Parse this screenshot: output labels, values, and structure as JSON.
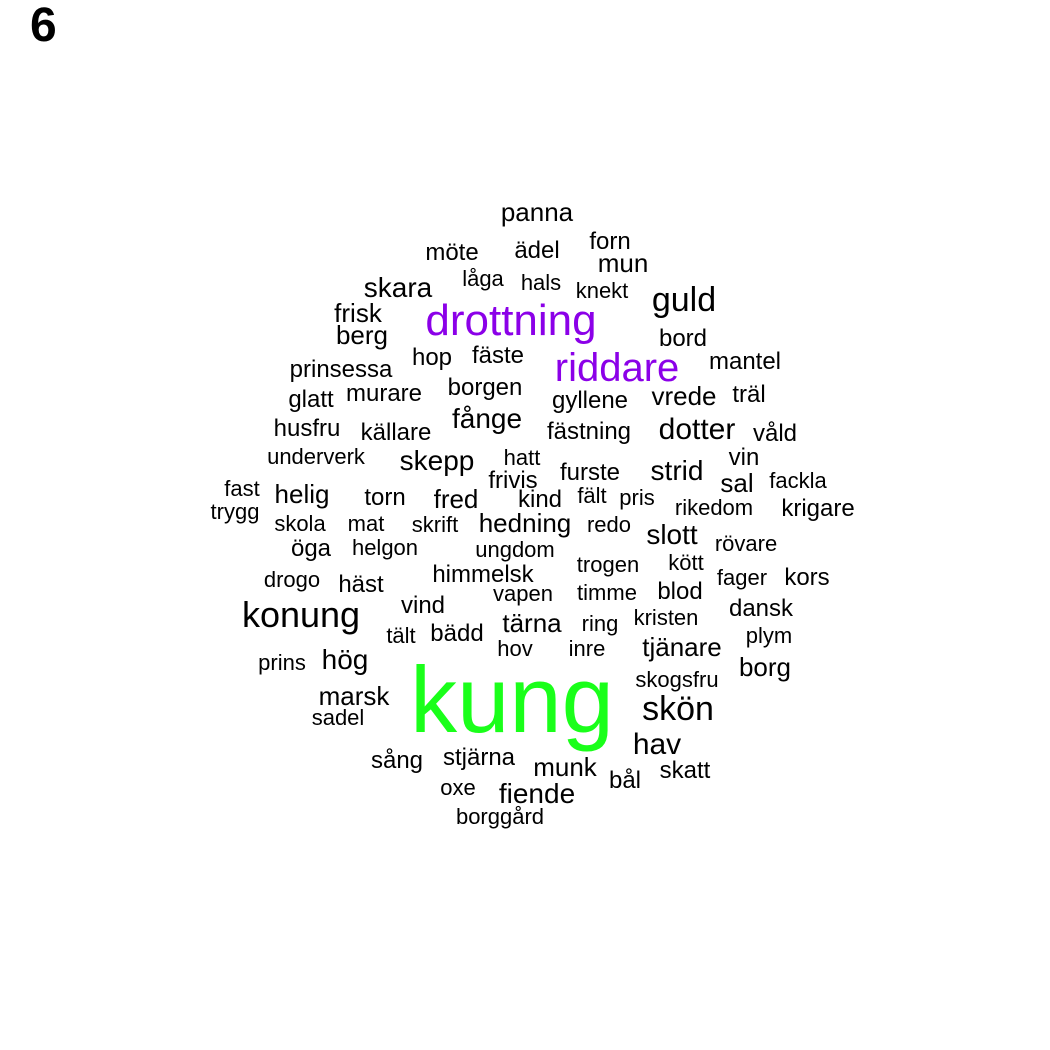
{
  "panel_label": "6",
  "colors": {
    "normal": "#000000",
    "highlight_purple": "#8b00e8",
    "highlight_green": "#1aff1a"
  },
  "words": [
    {
      "text": "kung",
      "color": "highlight_green"
    },
    {
      "text": "drottning",
      "color": "highlight_purple"
    },
    {
      "text": "riddare",
      "color": "highlight_purple"
    },
    {
      "text": "konung",
      "color": "normal"
    },
    {
      "text": "guld",
      "color": "normal"
    },
    {
      "text": "skön",
      "color": "normal"
    },
    {
      "text": "hav",
      "color": "normal"
    },
    {
      "text": "dotter",
      "color": "normal"
    },
    {
      "text": "panna",
      "color": "normal"
    },
    {
      "text": "möte",
      "color": "normal"
    },
    {
      "text": "ädel",
      "color": "normal"
    },
    {
      "text": "forn",
      "color": "normal"
    },
    {
      "text": "mun",
      "color": "normal"
    },
    {
      "text": "låga",
      "color": "normal"
    },
    {
      "text": "hals",
      "color": "normal"
    },
    {
      "text": "knekt",
      "color": "normal"
    },
    {
      "text": "skara",
      "color": "normal"
    },
    {
      "text": "frisk",
      "color": "normal"
    },
    {
      "text": "berg",
      "color": "normal"
    },
    {
      "text": "bord",
      "color": "normal"
    },
    {
      "text": "hop",
      "color": "normal"
    },
    {
      "text": "fäste",
      "color": "normal"
    },
    {
      "text": "mantel",
      "color": "normal"
    },
    {
      "text": "prinsessa",
      "color": "normal"
    },
    {
      "text": "borgen",
      "color": "normal"
    },
    {
      "text": "glatt",
      "color": "normal"
    },
    {
      "text": "murare",
      "color": "normal"
    },
    {
      "text": "gyllene",
      "color": "normal"
    },
    {
      "text": "vrede",
      "color": "normal"
    },
    {
      "text": "träl",
      "color": "normal"
    },
    {
      "text": "fånge",
      "color": "normal"
    },
    {
      "text": "husfru",
      "color": "normal"
    },
    {
      "text": "källare",
      "color": "normal"
    },
    {
      "text": "fästning",
      "color": "normal"
    },
    {
      "text": "våld",
      "color": "normal"
    },
    {
      "text": "underverk",
      "color": "normal"
    },
    {
      "text": "skepp",
      "color": "normal"
    },
    {
      "text": "hatt",
      "color": "normal"
    },
    {
      "text": "vin",
      "color": "normal"
    },
    {
      "text": "strid",
      "color": "normal"
    },
    {
      "text": "furste",
      "color": "normal"
    },
    {
      "text": "fackla",
      "color": "normal"
    },
    {
      "text": "sal",
      "color": "normal"
    },
    {
      "text": "frivis",
      "color": "normal"
    },
    {
      "text": "fast",
      "color": "normal"
    },
    {
      "text": "helig",
      "color": "normal"
    },
    {
      "text": "torn",
      "color": "normal"
    },
    {
      "text": "fred",
      "color": "normal"
    },
    {
      "text": "kind",
      "color": "normal"
    },
    {
      "text": "fält",
      "color": "normal"
    },
    {
      "text": "pris",
      "color": "normal"
    },
    {
      "text": "rikedom",
      "color": "normal"
    },
    {
      "text": "krigare",
      "color": "normal"
    },
    {
      "text": "trygg",
      "color": "normal"
    },
    {
      "text": "skola",
      "color": "normal"
    },
    {
      "text": "mat",
      "color": "normal"
    },
    {
      "text": "skrift",
      "color": "normal"
    },
    {
      "text": "hedning",
      "color": "normal"
    },
    {
      "text": "redo",
      "color": "normal"
    },
    {
      "text": "slott",
      "color": "normal"
    },
    {
      "text": "öga",
      "color": "normal"
    },
    {
      "text": "helgon",
      "color": "normal"
    },
    {
      "text": "ungdom",
      "color": "normal"
    },
    {
      "text": "rövare",
      "color": "normal"
    },
    {
      "text": "trogen",
      "color": "normal"
    },
    {
      "text": "kött",
      "color": "normal"
    },
    {
      "text": "drogo",
      "color": "normal"
    },
    {
      "text": "häst",
      "color": "normal"
    },
    {
      "text": "himmelsk",
      "color": "normal"
    },
    {
      "text": "fager",
      "color": "normal"
    },
    {
      "text": "kors",
      "color": "normal"
    },
    {
      "text": "vapen",
      "color": "normal"
    },
    {
      "text": "timme",
      "color": "normal"
    },
    {
      "text": "blod",
      "color": "normal"
    },
    {
      "text": "vind",
      "color": "normal"
    },
    {
      "text": "dansk",
      "color": "normal"
    },
    {
      "text": "tärna",
      "color": "normal"
    },
    {
      "text": "ring",
      "color": "normal"
    },
    {
      "text": "kristen",
      "color": "normal"
    },
    {
      "text": "tält",
      "color": "normal"
    },
    {
      "text": "bädd",
      "color": "normal"
    },
    {
      "text": "plym",
      "color": "normal"
    },
    {
      "text": "tjänare",
      "color": "normal"
    },
    {
      "text": "hov",
      "color": "normal"
    },
    {
      "text": "inre",
      "color": "normal"
    },
    {
      "text": "prins",
      "color": "normal"
    },
    {
      "text": "hög",
      "color": "normal"
    },
    {
      "text": "borg",
      "color": "normal"
    },
    {
      "text": "skogsfru",
      "color": "normal"
    },
    {
      "text": "marsk",
      "color": "normal"
    },
    {
      "text": "sadel",
      "color": "normal"
    },
    {
      "text": "sång",
      "color": "normal"
    },
    {
      "text": "stjärna",
      "color": "normal"
    },
    {
      "text": "munk",
      "color": "normal"
    },
    {
      "text": "skatt",
      "color": "normal"
    },
    {
      "text": "bål",
      "color": "normal"
    },
    {
      "text": "oxe",
      "color": "normal"
    },
    {
      "text": "fiende",
      "color": "normal"
    },
    {
      "text": "borggård",
      "color": "normal"
    }
  ]
}
